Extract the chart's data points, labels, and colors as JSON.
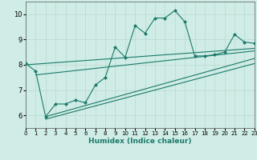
{
  "xlabel": "Humidex (Indice chaleur)",
  "background_color": "#d0ece6",
  "grid_color": "#b8d8d0",
  "line_color": "#1a7a6a",
  "xlim": [
    0,
    23
  ],
  "ylim": [
    5.5,
    10.5
  ],
  "xticks": [
    0,
    1,
    2,
    3,
    4,
    5,
    6,
    7,
    8,
    9,
    10,
    11,
    12,
    13,
    14,
    15,
    16,
    17,
    18,
    19,
    20,
    21,
    22,
    23
  ],
  "yticks": [
    6,
    7,
    8,
    9,
    10
  ],
  "main_series": [
    [
      0,
      8.05
    ],
    [
      1,
      7.75
    ],
    [
      2,
      5.95
    ],
    [
      3,
      6.45
    ],
    [
      4,
      6.45
    ],
    [
      5,
      6.6
    ],
    [
      6,
      6.5
    ],
    [
      7,
      7.2
    ],
    [
      8,
      7.5
    ],
    [
      9,
      8.7
    ],
    [
      10,
      8.3
    ],
    [
      11,
      9.55
    ],
    [
      12,
      9.25
    ],
    [
      13,
      9.85
    ],
    [
      14,
      9.85
    ],
    [
      15,
      10.15
    ],
    [
      16,
      9.7
    ],
    [
      17,
      8.35
    ],
    [
      18,
      8.35
    ],
    [
      19,
      8.4
    ],
    [
      20,
      8.5
    ],
    [
      21,
      9.2
    ],
    [
      22,
      8.9
    ],
    [
      23,
      8.85
    ]
  ],
  "trend_lines": [
    [
      [
        0,
        8.0
      ],
      [
        23,
        8.65
      ]
    ],
    [
      [
        1,
        7.6
      ],
      [
        23,
        8.55
      ]
    ],
    [
      [
        2,
        5.95
      ],
      [
        23,
        8.25
      ]
    ],
    [
      [
        2,
        5.85
      ],
      [
        23,
        8.05
      ]
    ]
  ],
  "marker_size": 2.5,
  "line_width": 0.8
}
